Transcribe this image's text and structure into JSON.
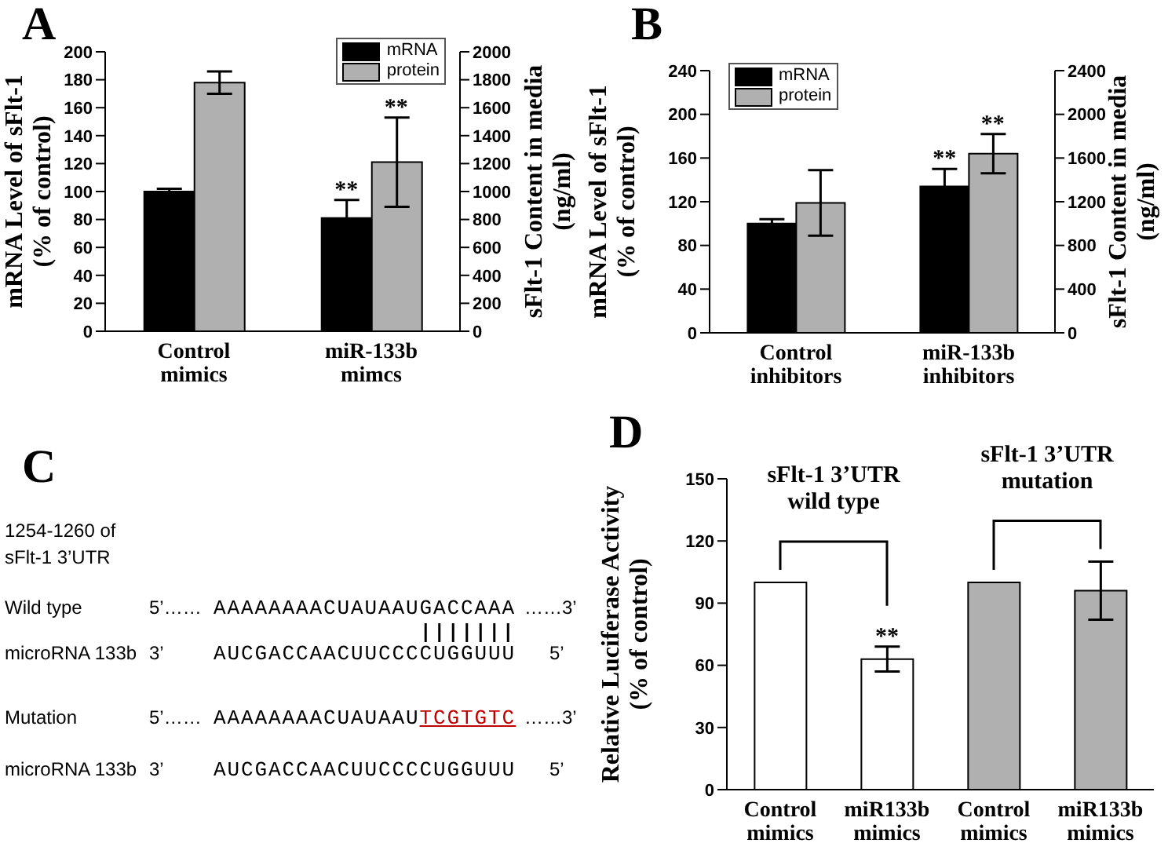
{
  "chart_data": [
    {
      "type": "bar",
      "categories": [
        "Control\nmimics",
        "miR-133b\nmimcs"
      ],
      "ylabel": "mRNA Level of sFlt-1\n(% of control)",
      "y2label": "sFlt-1 Content in media\n(ng/ml)",
      "ylim": [
        0,
        200
      ],
      "yticks": [
        0,
        20,
        40,
        60,
        80,
        100,
        120,
        140,
        160,
        180,
        200
      ],
      "y2lim": [
        0,
        2000
      ],
      "y2ticks": [
        0,
        200,
        400,
        600,
        800,
        1000,
        1200,
        1400,
        1600,
        1800,
        2000
      ],
      "legend": "top right",
      "annotations": [
        "A"
      ],
      "series": [
        {
          "name": "mRNA",
          "color": "#000000",
          "values": [
            100,
            81
          ],
          "errors": [
            2,
            13
          ],
          "value_labels": [
            null,
            "**"
          ]
        },
        {
          "name": "protein",
          "color": "#b0b0b0",
          "axis": "y2",
          "values": [
            1780,
            1210
          ],
          "errors": [
            80,
            320
          ],
          "value_labels": [
            null,
            "**"
          ]
        }
      ]
    },
    {
      "type": "bar",
      "categories": [
        "Control\ninhibitors",
        "miR-133b\ninhibitors"
      ],
      "ylabel": "mRNA Level of sFlt-1\n(% of control)",
      "y2label": "sFlt-1 Content in media\n(ng/ml)",
      "ylim": [
        0,
        240
      ],
      "yticks": [
        0,
        40,
        80,
        120,
        160,
        200,
        240
      ],
      "y2lim": [
        0,
        2400
      ],
      "y2ticks": [
        0,
        400,
        800,
        1200,
        1600,
        2000,
        2400
      ],
      "legend": "top left",
      "annotations": [
        "B"
      ],
      "series": [
        {
          "name": "mRNA",
          "color": "#000000",
          "values": [
            100,
            134
          ],
          "errors": [
            4,
            16
          ],
          "value_labels": [
            null,
            "**"
          ]
        },
        {
          "name": "protein",
          "color": "#b0b0b0",
          "axis": "y2",
          "values": [
            1190,
            1640
          ],
          "errors": [
            300,
            180
          ],
          "value_labels": [
            null,
            "**"
          ]
        }
      ]
    },
    {
      "type": "other",
      "color": "#c00000",
      "annotations": [
        "C",
        "1254-1260 of\nsFlt-1 3’UTR",
        "Wild type",
        "5’……",
        "AAAAAAAACUAUAAUGACCAAA",
        "……3’",
        "microRNA 133b",
        "3’",
        "AUCGACCAACUUCCCCUGGUUU",
        "5’",
        "Mutation",
        "5’……",
        "AAAAAAAACUAUAAU",
        "TCGTGTC",
        "……3’",
        "microRNA 133b",
        "3’",
        "AUCGACCAACUUCCCCUGGUUU",
        "5’"
      ]
    },
    {
      "type": "bar",
      "categories": [
        "Control\nmimics",
        "miR133b\nmimics",
        "Control\nmimics",
        "miR133b\nmimics"
      ],
      "ylabel": "Relative Luciferase Activity\n(% of  control)",
      "ylim": [
        0,
        150
      ],
      "yticks": [
        0,
        30,
        60,
        90,
        120,
        150
      ],
      "annotations": [
        "D",
        "sFlt-1 3’UTR\nwild type",
        "sFlt-1 3’UTR\nmutation"
      ],
      "values": [
        100,
        63,
        100,
        96
      ],
      "colors": [
        "#ffffff",
        "#ffffff",
        "#b0b0b0",
        "#b0b0b0"
      ],
      "errors": [
        null,
        6,
        null,
        14
      ],
      "value_labels": [
        null,
        "**",
        null,
        null
      ]
    }
  ]
}
